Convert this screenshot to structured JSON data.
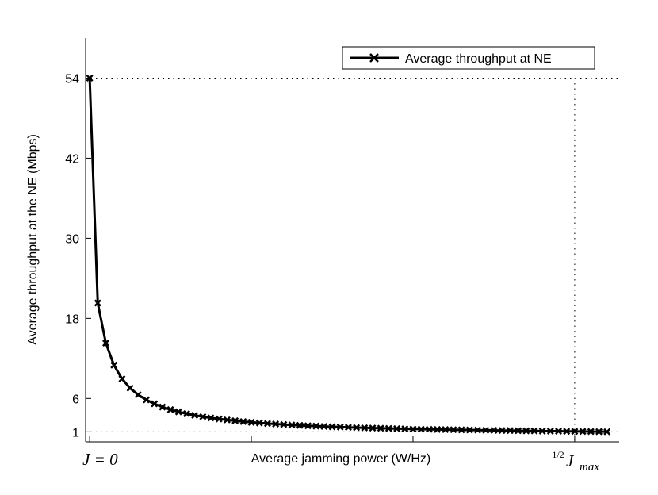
{
  "chart_data": {
    "type": "line",
    "title": "",
    "xlabel": "Average jamming power (W/Hz)",
    "ylabel": "Average throughput at the NE (Mbps)",
    "xlim": [
      -0.5,
      65.5
    ],
    "ylim": [
      -0.5,
      60
    ],
    "y_ticks": [
      1,
      6,
      18,
      30,
      42,
      54
    ],
    "x_tick_values": [
      0,
      20,
      40,
      60
    ],
    "x_tick_label_start": "J = 0",
    "x_tick_label_end": "½ J_max",
    "x_end_label": {
      "fraction": "1/2",
      "base": "J",
      "subscript": "max"
    },
    "reference_lines": {
      "x": 60,
      "y_values": [
        54,
        1
      ],
      "style": "dotted"
    },
    "legend": {
      "position": "top-right",
      "entries": [
        "Average throughput at NE"
      ]
    },
    "grid": false,
    "series": [
      {
        "name": "Average throughput at NE",
        "marker": "x",
        "color": "#000000",
        "x": [
          0,
          1,
          2,
          3,
          4,
          5,
          6,
          7,
          8,
          9,
          10,
          11,
          12,
          13,
          14,
          15,
          16,
          17,
          18,
          19,
          20,
          21,
          22,
          23,
          24,
          25,
          26,
          27,
          28,
          29,
          30,
          31,
          32,
          33,
          34,
          35,
          36,
          37,
          38,
          39,
          40,
          41,
          42,
          43,
          44,
          45,
          46,
          47,
          48,
          49,
          50,
          51,
          52,
          53,
          54,
          55,
          56,
          57,
          58,
          59,
          60,
          61,
          62,
          63,
          64
        ],
        "values": [
          54.0,
          20.3,
          14.3,
          11.0,
          8.95,
          7.55,
          6.55,
          5.8,
          5.2,
          4.72,
          4.33,
          4.0,
          3.72,
          3.48,
          3.27,
          3.09,
          2.93,
          2.79,
          2.66,
          2.54,
          2.43,
          2.34,
          2.25,
          2.17,
          2.1,
          2.03,
          1.97,
          1.91,
          1.86,
          1.81,
          1.76,
          1.72,
          1.68,
          1.64,
          1.6,
          1.57,
          1.54,
          1.51,
          1.48,
          1.45,
          1.42,
          1.4,
          1.38,
          1.36,
          1.34,
          1.32,
          1.3,
          1.28,
          1.26,
          1.24,
          1.22,
          1.2,
          1.19,
          1.17,
          1.15,
          1.14,
          1.12,
          1.11,
          1.1,
          1.08,
          1.07,
          1.06,
          1.05,
          1.03,
          1.02
        ]
      }
    ]
  }
}
